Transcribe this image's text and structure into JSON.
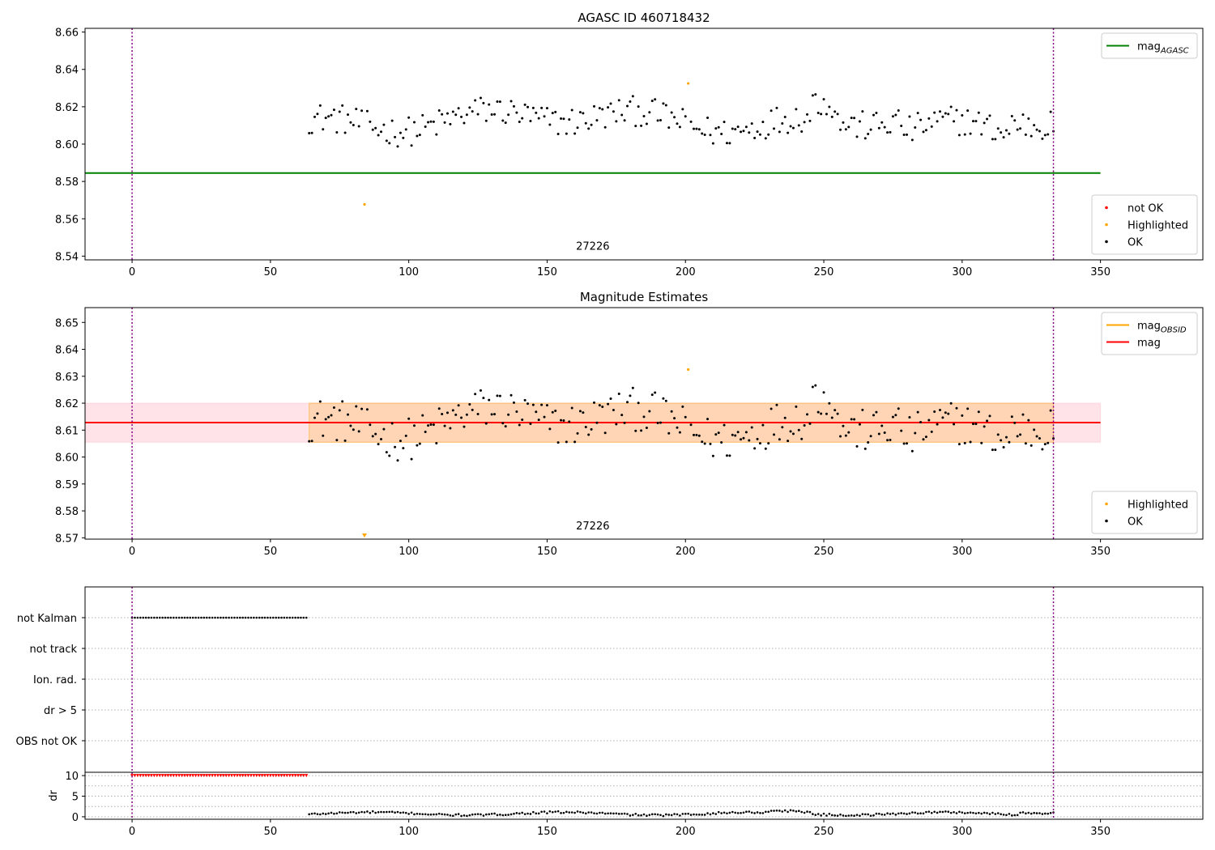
{
  "chart_data": [
    {
      "type": "scatter",
      "title": "AGASC ID 460718432",
      "xlim": [
        -17,
        387
      ],
      "ylim": [
        8.538,
        8.662
      ],
      "xticks": [
        0,
        50,
        100,
        150,
        200,
        250,
        300,
        350
      ],
      "yticks": [
        8.54,
        8.56,
        8.58,
        8.6,
        8.62,
        8.64,
        8.66
      ],
      "ytick_decimals": 2,
      "grid": false,
      "vlines": [
        0,
        333
      ],
      "obsid_label": {
        "text": "27226",
        "x": 166.5,
        "y": 8.5425
      },
      "hlines": [
        {
          "name": "mag_AGASC",
          "y": 8.5845,
          "x": [
            -17,
            350
          ],
          "color": "#008000"
        }
      ],
      "series": [
        {
          "name": "not OK",
          "color": "#ff0000",
          "points": []
        },
        {
          "name": "Highlighted",
          "color": "#ffa500",
          "points": [
            [
              84,
              8.5677
            ],
            [
              201,
              8.6325
            ]
          ]
        },
        {
          "name": "OK",
          "color": "#000000",
          "generated": "mag_ok",
          "x_range": [
            64,
            333
          ]
        }
      ],
      "legends": [
        {
          "placement": "top-right",
          "entries": [
            {
              "kind": "line",
              "color": "#008000",
              "label": "mag",
              "sub": "AGASC"
            }
          ]
        },
        {
          "placement": "lower-right",
          "entries": [
            {
              "kind": "dot",
              "color": "#ff0000",
              "label": "not OK"
            },
            {
              "kind": "dot",
              "color": "#ffa500",
              "label": "Highlighted"
            },
            {
              "kind": "dot",
              "color": "#000000",
              "label": "OK"
            }
          ]
        }
      ]
    },
    {
      "type": "scatter",
      "title": "Magnitude Estimates",
      "xlim": [
        -17,
        387
      ],
      "ylim": [
        8.5695,
        8.6555
      ],
      "xticks": [
        0,
        50,
        100,
        150,
        200,
        250,
        300,
        350
      ],
      "yticks": [
        8.57,
        8.58,
        8.59,
        8.6,
        8.61,
        8.62,
        8.63,
        8.64,
        8.65
      ],
      "ytick_decimals": 2,
      "grid": false,
      "vlines": [
        0,
        333
      ],
      "obsid_label": {
        "text": "27226",
        "x": 166.5,
        "y": 8.5725
      },
      "bands": [
        {
          "name": "mag range",
          "y": [
            8.6055,
            8.62
          ],
          "x": [
            -17,
            350
          ],
          "color": "#ffc0cb",
          "opacity": 0.45
        },
        {
          "name": "mag_OBSID range",
          "y": [
            8.6055,
            8.62
          ],
          "x": [
            64,
            333
          ],
          "color": "#ffa500",
          "opacity": 0.22
        }
      ],
      "hlines": [
        {
          "name": "mag_OBSID",
          "y": 8.6128,
          "x": [
            64,
            333
          ],
          "color": "#ffa500"
        },
        {
          "name": "mag",
          "y": 8.6128,
          "x": [
            -17,
            350
          ],
          "color": "#ff0000"
        }
      ],
      "series": [
        {
          "name": "Highlighted",
          "color": "#ffa500",
          "points": [
            [
              201,
              8.6325
            ]
          ],
          "offscale": [
            {
              "x": 84,
              "marker": "triangle-down"
            }
          ]
        },
        {
          "name": "OK",
          "color": "#000000",
          "generated": "mag_ok",
          "x_range": [
            64,
            333
          ]
        }
      ],
      "legends": [
        {
          "placement": "top-right",
          "entries": [
            {
              "kind": "line",
              "color": "#ffa500",
              "label": "mag",
              "sub": "OBSID"
            },
            {
              "kind": "line",
              "color": "#ff0000",
              "label": "mag"
            }
          ]
        },
        {
          "placement": "lower-right",
          "entries": [
            {
              "kind": "dot",
              "color": "#ffa500",
              "label": "Highlighted"
            },
            {
              "kind": "dot",
              "color": "#000000",
              "label": "OK"
            }
          ]
        }
      ]
    },
    {
      "type": "scatter",
      "title": "",
      "xlim": [
        -17,
        387
      ],
      "categories": [
        "not Kalman",
        "not track",
        "Ion. rad.",
        "dr > 5",
        "OBS not OK"
      ],
      "vlines": [
        0,
        333
      ],
      "grid": "horizontal",
      "flag_series": [
        {
          "category": "not Kalman",
          "x_range": [
            0,
            63
          ],
          "color": "#000000"
        }
      ]
    },
    {
      "type": "scatter",
      "title": "",
      "xlim": [
        -17,
        387
      ],
      "ylim": [
        -0.6,
        10.8
      ],
      "ylabel": "dr",
      "xticks": [
        0,
        50,
        100,
        150,
        200,
        250,
        300,
        350
      ],
      "yticks": [
        0,
        5,
        10
      ],
      "grid": "horizontal",
      "vlines": [
        0,
        333
      ],
      "series": [
        {
          "name": "dr > 5",
          "color": "#ff0000",
          "constant": 10,
          "x_range": [
            0,
            63
          ]
        },
        {
          "name": "dr",
          "color": "#000000",
          "generated": "dr",
          "x_range": [
            64,
            333
          ]
        }
      ]
    }
  ]
}
